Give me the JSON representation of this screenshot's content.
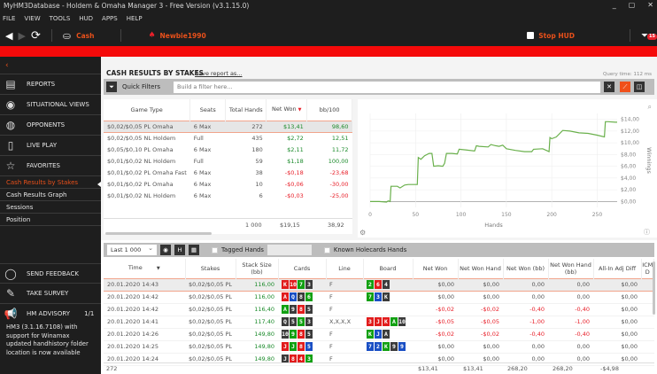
{
  "window": {
    "title": "MyHM3Database - Holdem & Omaha Manager 3 - Free Version (v3.1.15.0)",
    "controls": [
      "minimize-icon",
      "maximize-icon",
      "close-icon"
    ]
  },
  "menu": [
    "FILE",
    "VIEW",
    "TOOLS",
    "HUD",
    "APPS",
    "HELP"
  ],
  "toolbar": {
    "game_type": "Cash",
    "player": "Newbie1990",
    "stop_hud_label": "Stop HUD",
    "filter_badge": "15"
  },
  "sidebar": {
    "back_icon": "‹",
    "items": [
      {
        "label": "REPORTS",
        "icon": "report-icon"
      },
      {
        "label": "SITUATIONAL VIEWS",
        "icon": "eye-icon"
      },
      {
        "label": "OPPONENTS",
        "icon": "opponent-icon"
      },
      {
        "label": "LIVE PLAY",
        "icon": "live-play-icon"
      },
      {
        "label": "FAVORITES",
        "icon": "star-icon"
      }
    ],
    "favorites": [
      {
        "label": "Cash Results by Stakes",
        "active": true
      },
      {
        "label": "Cash Results Graph",
        "active": false
      },
      {
        "label": "Sessions",
        "active": false
      },
      {
        "label": "Position",
        "active": false
      }
    ],
    "bottom": {
      "send_feedback": "SEND FEEDBACK",
      "take_survey": "TAKE SURVEY",
      "advisory_title": "HM ADVISORY",
      "advisory_count": "1/1",
      "advisory_text": "HM3 (3.1.16.7108) with support for Winamax updated handhistory folder location is now available"
    }
  },
  "report": {
    "title": "CASH RESULTS BY STAKES",
    "save_link": "Save report as...",
    "query_time": "Query time: 112 ms",
    "quick_filters_label": "Quick Filters",
    "filter_placeholder": "Build a filter here..."
  },
  "stakes_table": {
    "columns": [
      "Game Type",
      "Seats",
      "Total Hands",
      "Net Won",
      "bb/100"
    ],
    "rows": [
      {
        "game": "$0,02/$0,05 PL Omaha",
        "seats": "6 Max",
        "hands": "272",
        "net": "$13,41",
        "bb": "98,60",
        "sign": "pos",
        "selected": true
      },
      {
        "game": "$0,02/$0,05 NL Holdem",
        "seats": "Full",
        "hands": "435",
        "net": "$2,72",
        "bb": "12,51",
        "sign": "pos"
      },
      {
        "game": "$0,05/$0,10 PL Omaha",
        "seats": "6 Max",
        "hands": "180",
        "net": "$2,11",
        "bb": "11,72",
        "sign": "pos"
      },
      {
        "game": "$0,01/$0,02 NL Holdem",
        "seats": "Full",
        "hands": "59",
        "net": "$1,18",
        "bb": "100,00",
        "sign": "pos"
      },
      {
        "game": "$0,01/$0,02 PL Omaha Fast",
        "seats": "6 Max",
        "hands": "38",
        "net": "-$0,18",
        "bb": "-23,68",
        "sign": "neg"
      },
      {
        "game": "$0,01/$0,02 PL Omaha",
        "seats": "6 Max",
        "hands": "10",
        "net": "-$0,06",
        "bb": "-30,00",
        "sign": "neg"
      },
      {
        "game": "$0,01/$0,02 NL Holdem",
        "seats": "6 Max",
        "hands": "6",
        "net": "-$0,03",
        "bb": "-25,00",
        "sign": "neg"
      }
    ],
    "totals": {
      "hands": "1 000",
      "net": "$19,15",
      "bb": "38,92"
    }
  },
  "chart_data": {
    "type": "line",
    "title": "",
    "xlabel": "Hands",
    "ylabel": "Winnings",
    "x_ticks": [
      "0",
      "50",
      "100",
      "150",
      "200",
      "250"
    ],
    "y_ticks": [
      "$0,00",
      "$2,00",
      "$4,00",
      "$6,00",
      "$8,00",
      "$10,00",
      "$12,00",
      "$14,00"
    ],
    "xlim": [
      0,
      272
    ],
    "ylim": [
      -1,
      15
    ],
    "grid": true,
    "series": [
      {
        "name": "Winnings",
        "color": "#6ab04c",
        "x": [
          0,
          10,
          18,
          20,
          22,
          23,
          30,
          33,
          38,
          42,
          50,
          52,
          53,
          56,
          60,
          65,
          68,
          70,
          75,
          80,
          82,
          84,
          90,
          96,
          98,
          105,
          115,
          117,
          120,
          130,
          133,
          138,
          142,
          146,
          150,
          160,
          170,
          178,
          180,
          190,
          197,
          198,
          200,
          205,
          212,
          220,
          230,
          240,
          250,
          258,
          259,
          262,
          270,
          272
        ],
        "values": [
          0,
          0,
          -0.1,
          0.1,
          0,
          2.6,
          2.6,
          2.3,
          2.8,
          2.9,
          2.9,
          2.9,
          7.5,
          7.2,
          7.8,
          8.2,
          8.2,
          6.0,
          6.1,
          6.0,
          6.5,
          8.2,
          8.2,
          8.1,
          8.9,
          8.8,
          8.6,
          9.5,
          9.4,
          9.3,
          9.7,
          9.5,
          9.4,
          9.6,
          9.0,
          8.7,
          8.5,
          8.5,
          8.9,
          9.0,
          8.5,
          10.9,
          10.7,
          11.0,
          12.1,
          12.0,
          11.7,
          11.6,
          11.3,
          11.0,
          13.6,
          13.6,
          13.5,
          13.5
        ]
      }
    ]
  },
  "hands_toolbar": {
    "range": "Last 1 000",
    "buttons": [
      "eye-toggle",
      "H",
      "grid"
    ],
    "tagged_hands": "Tagged Hands",
    "known_holecards": "Known Holecards Hands"
  },
  "hands_table": {
    "columns": [
      "Time",
      "Stakes",
      "Stack Size (bb)",
      "Cards",
      "Line",
      "Board",
      "Net Won",
      "Net Won Hand",
      "Net Won (bb)",
      "Net Won Hand (bb)",
      "All-In Adj Diff",
      "ICM D"
    ],
    "rows": [
      {
        "time": "20.01.2020 14:43",
        "stakes": "$0,02/$0,05 PL",
        "stack": "116,00",
        "cards": [
          [
            "K",
            "r"
          ],
          [
            "10",
            "r"
          ],
          [
            "7",
            "g"
          ],
          [
            "3",
            "k"
          ]
        ],
        "line": "F",
        "board": [
          [
            "2",
            "g"
          ],
          [
            "6",
            "r"
          ],
          [
            "4",
            "k"
          ]
        ],
        "net": "$0,00",
        "net_hand": "$0,00",
        "net_bb": "0,00",
        "net_hand_bb": "0,00",
        "allin": "$0,00",
        "sign": "zero",
        "selected": true
      },
      {
        "time": "20.01.2020 14:42",
        "stakes": "$0,02/$0,05 PL",
        "stack": "116,00",
        "cards": [
          [
            "A",
            "r"
          ],
          [
            "Q",
            "b"
          ],
          [
            "8",
            "k"
          ],
          [
            "6",
            "g"
          ]
        ],
        "line": "F",
        "board": [
          [
            "7",
            "g"
          ],
          [
            "3",
            "b"
          ],
          [
            "K",
            "k"
          ]
        ],
        "net": "$0,00",
        "net_hand": "$0,00",
        "net_bb": "0,00",
        "net_hand_bb": "0,00",
        "allin": "$0,00",
        "sign": "zero"
      },
      {
        "time": "20.01.2020 14:42",
        "stakes": "$0,02/$0,05 PL",
        "stack": "116,40",
        "cards": [
          [
            "A",
            "g"
          ],
          [
            "9",
            "k"
          ],
          [
            "8",
            "r"
          ],
          [
            "5",
            "k"
          ]
        ],
        "line": "F",
        "board": [],
        "net": "-$0,02",
        "net_hand": "-$0,02",
        "net_bb": "-0,40",
        "net_hand_bb": "-0,40",
        "allin": "$0,00",
        "sign": "neg"
      },
      {
        "time": "20.01.2020 14:41",
        "stakes": "$0,02/$0,05 PL",
        "stack": "117,40",
        "cards": [
          [
            "Q",
            "k"
          ],
          [
            "5",
            "k"
          ],
          [
            "5",
            "g"
          ],
          [
            "3",
            "k"
          ]
        ],
        "line": "X,X,X,X",
        "board": [
          [
            "3",
            "r"
          ],
          [
            "J",
            "r"
          ],
          [
            "K",
            "r"
          ],
          [
            "A",
            "g"
          ],
          [
            "10",
            "k"
          ]
        ],
        "net": "-$0,05",
        "net_hand": "-$0,05",
        "net_bb": "-1,00",
        "net_hand_bb": "-1,00",
        "allin": "$0,00",
        "sign": "neg"
      },
      {
        "time": "20.01.2020 14:26",
        "stakes": "$0,02/$0,05 PL",
        "stack": "149,80",
        "cards": [
          [
            "10",
            "k"
          ],
          [
            "9",
            "g"
          ],
          [
            "8",
            "r"
          ],
          [
            "5",
            "k"
          ]
        ],
        "line": "F",
        "board": [
          [
            "K",
            "g"
          ],
          [
            "J",
            "b"
          ],
          [
            "A",
            "k"
          ]
        ],
        "net": "-$0,02",
        "net_hand": "-$0,02",
        "net_bb": "-0,40",
        "net_hand_bb": "-0,40",
        "allin": "$0,00",
        "sign": "neg"
      },
      {
        "time": "20.01.2020 14:25",
        "stakes": "$0,02/$0,05 PL",
        "stack": "149,80",
        "cards": [
          [
            "J",
            "r"
          ],
          [
            "J",
            "g"
          ],
          [
            "8",
            "r"
          ],
          [
            "5",
            "b"
          ]
        ],
        "line": "F",
        "board": [
          [
            "7",
            "b"
          ],
          [
            "2",
            "b"
          ],
          [
            "K",
            "g"
          ],
          [
            "9",
            "k"
          ],
          [
            "9",
            "b"
          ]
        ],
        "net": "$0,00",
        "net_hand": "$0,00",
        "net_bb": "0,00",
        "net_hand_bb": "0,00",
        "allin": "$0,00",
        "sign": "zero"
      },
      {
        "time": "20.01.2020 14:24",
        "stakes": "$0,02/$0,05 PL",
        "stack": "149,80",
        "cards": [
          [
            "J",
            "k"
          ],
          [
            "8",
            "r"
          ],
          [
            "4",
            "r"
          ],
          [
            "3",
            "g"
          ]
        ],
        "line": "F",
        "board": [],
        "net": "$0,00",
        "net_hand": "$0,00",
        "net_bb": "0,00",
        "net_hand_bb": "0,00",
        "allin": "$0,00",
        "sign": "zero"
      }
    ],
    "totals": {
      "count": "272",
      "net": "$13,41",
      "net_hand": "$13,41",
      "net_bb": "268,20",
      "net_hand_bb": "268,20",
      "allin": "-$4,98"
    }
  }
}
